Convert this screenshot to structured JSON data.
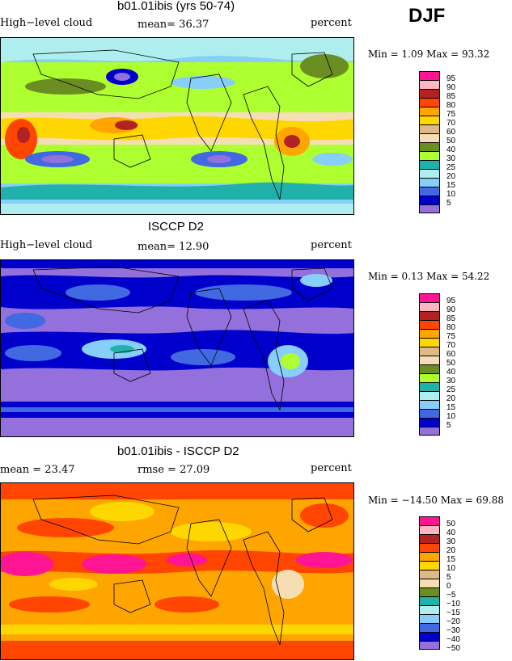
{
  "season": "DJF",
  "panels": [
    {
      "title": "b01.01ibis (yrs 50-74)",
      "left_label": "High−level cloud",
      "stat_label": "mean=  36.37",
      "units": "percent",
      "minmax": "Min =    1.09  Max =  93.32",
      "cbar_labels": [
        "95",
        "90",
        "85",
        "80",
        "75",
        "70",
        "60",
        "50",
        "40",
        "30",
        "25",
        "20",
        "15",
        "10",
        "5"
      ],
      "cbar_colors": [
        "#ff1493",
        "#ffb6c1",
        "#b22222",
        "#ff4500",
        "#ffa500",
        "#ffd700",
        "#deb887",
        "#f5deb3",
        "#6b8e23",
        "#adff2f",
        "#20b2aa",
        "#afeeee",
        "#87cefa",
        "#4169e1",
        "#0000cd",
        "#9370db"
      ]
    },
    {
      "title": "ISCCP D2",
      "left_label": "High−level cloud",
      "stat_label": "mean=  12.90",
      "units": "percent",
      "minmax": "Min =    0.13  Max =  54.22",
      "cbar_labels": [
        "95",
        "90",
        "85",
        "80",
        "75",
        "70",
        "60",
        "50",
        "40",
        "30",
        "25",
        "20",
        "15",
        "10",
        "5"
      ],
      "cbar_colors": [
        "#ff1493",
        "#ffb6c1",
        "#b22222",
        "#ff4500",
        "#ffa500",
        "#ffd700",
        "#deb887",
        "#f5deb3",
        "#6b8e23",
        "#adff2f",
        "#20b2aa",
        "#afeeee",
        "#87cefa",
        "#4169e1",
        "#0000cd",
        "#9370db"
      ]
    },
    {
      "title": "b01.01ibis - ISCCP D2",
      "left_label": "mean =  23.47",
      "stat_label": "rmse =  27.09",
      "units": "percent",
      "minmax": "Min = −14.50  Max =  69.88",
      "cbar_labels": [
        "50",
        "40",
        "30",
        "20",
        "15",
        "10",
        "5",
        "0",
        "−5",
        "−10",
        "−15",
        "−20",
        "−30",
        "−40",
        "−50"
      ],
      "cbar_colors": [
        "#ff1493",
        "#ffb6c1",
        "#b22222",
        "#ff4500",
        "#ffa500",
        "#ffd700",
        "#deb887",
        "#f5deb3",
        "#6b8e23",
        "#20b2aa",
        "#afeeee",
        "#87cefa",
        "#4169e1",
        "#0000cd",
        "#9370db"
      ]
    }
  ],
  "chart_data": [
    {
      "type": "heatmap",
      "title": "b01.01ibis (yrs 50-74)",
      "variable": "High−level cloud",
      "units": "percent",
      "mean": 36.37,
      "min": 1.09,
      "max": 93.32,
      "levels": [
        5,
        10,
        15,
        20,
        25,
        30,
        40,
        50,
        60,
        70,
        75,
        80,
        85,
        90,
        95
      ]
    },
    {
      "type": "heatmap",
      "title": "ISCCP D2",
      "variable": "High−level cloud",
      "units": "percent",
      "mean": 12.9,
      "min": 0.13,
      "max": 54.22,
      "levels": [
        5,
        10,
        15,
        20,
        25,
        30,
        40,
        50,
        60,
        70,
        75,
        80,
        85,
        90,
        95
      ]
    },
    {
      "type": "heatmap",
      "title": "b01.01ibis - ISCCP D2",
      "units": "percent",
      "mean": 23.47,
      "rmse": 27.09,
      "min": -14.5,
      "max": 69.88,
      "levels": [
        -50,
        -40,
        -30,
        -20,
        -15,
        -10,
        -5,
        0,
        5,
        10,
        15,
        20,
        30,
        40,
        50
      ]
    }
  ]
}
